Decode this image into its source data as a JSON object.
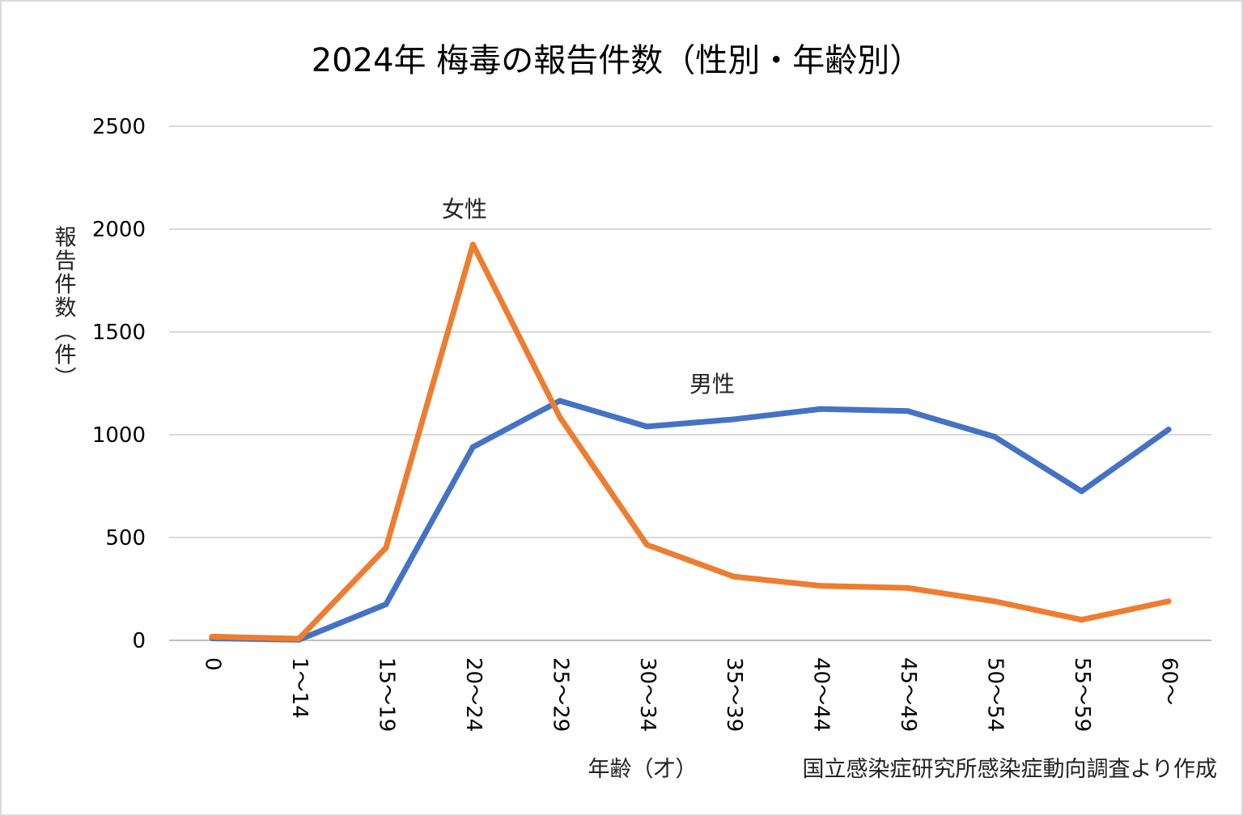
{
  "chart_data": {
    "type": "line",
    "title": "2024年  梅毒の報告件数（性別・年齢別）",
    "ylabel": "報告件数（件）",
    "xlabel": "年齢（才）",
    "source": "国立感染症研究所感染症動向調査より作成",
    "categories": [
      "0",
      "1～14",
      "15～19",
      "20～24",
      "25～29",
      "30～34",
      "35～39",
      "40～44",
      "45～49",
      "50～54",
      "55～59",
      "60～"
    ],
    "ylim": [
      0,
      2500
    ],
    "yticks": [
      "0",
      "500",
      "1000",
      "1500",
      "2000",
      "2500"
    ],
    "grid": true,
    "series": [
      {
        "name": "男性",
        "color": "#4472c4",
        "values": [
          10,
          3,
          175,
          940,
          1165,
          1040,
          1075,
          1125,
          1115,
          990,
          725,
          1025
        ]
      },
      {
        "name": "女性",
        "color": "#ed7d31",
        "values": [
          18,
          8,
          450,
          1925,
          1085,
          465,
          310,
          265,
          255,
          190,
          100,
          190
        ]
      }
    ]
  }
}
